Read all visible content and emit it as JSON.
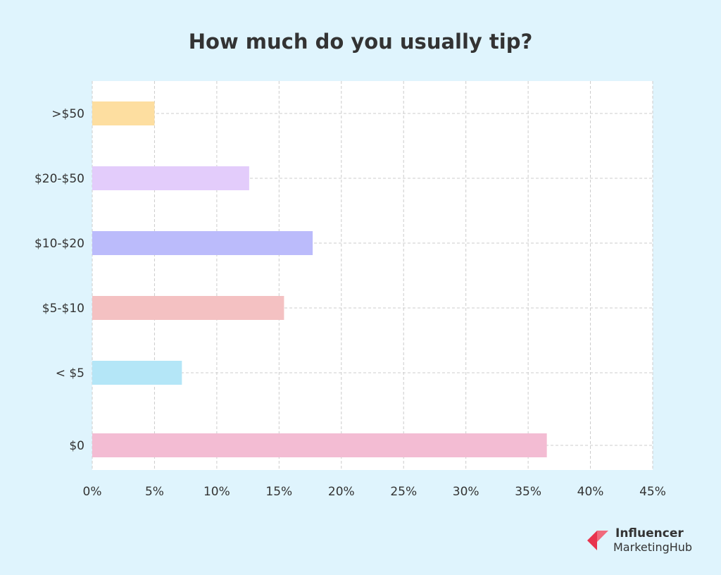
{
  "chart_data": {
    "type": "bar",
    "orientation": "horizontal",
    "title": "How much do you usually tip?",
    "xlabel": "",
    "ylabel": "",
    "categories": [
      ">$50",
      "$20-$50",
      "$10-$20",
      "$5-$10",
      "< $5",
      "$0"
    ],
    "values": [
      5,
      12.6,
      17.7,
      15.4,
      7.2,
      36.5
    ],
    "colors": [
      "#fddea0",
      "#e3ccfb",
      "#bbbbfb",
      "#f4c1c2",
      "#b4e6f7",
      "#f3bcd3"
    ],
    "xlim": [
      0,
      45
    ],
    "xticks": [
      "0%",
      "5%",
      "10%",
      "15%",
      "20%",
      "25%",
      "30%",
      "35%",
      "40%",
      "45%"
    ],
    "grid": true,
    "legend": "none"
  },
  "branding": {
    "logo_line1": "Influencer",
    "logo_line2": "MarketingHub"
  },
  "colors": {
    "background": "#dff4fd",
    "plot_background": "#ffffff",
    "grid": "#cccccc",
    "logo_accent": "#e8344e"
  }
}
